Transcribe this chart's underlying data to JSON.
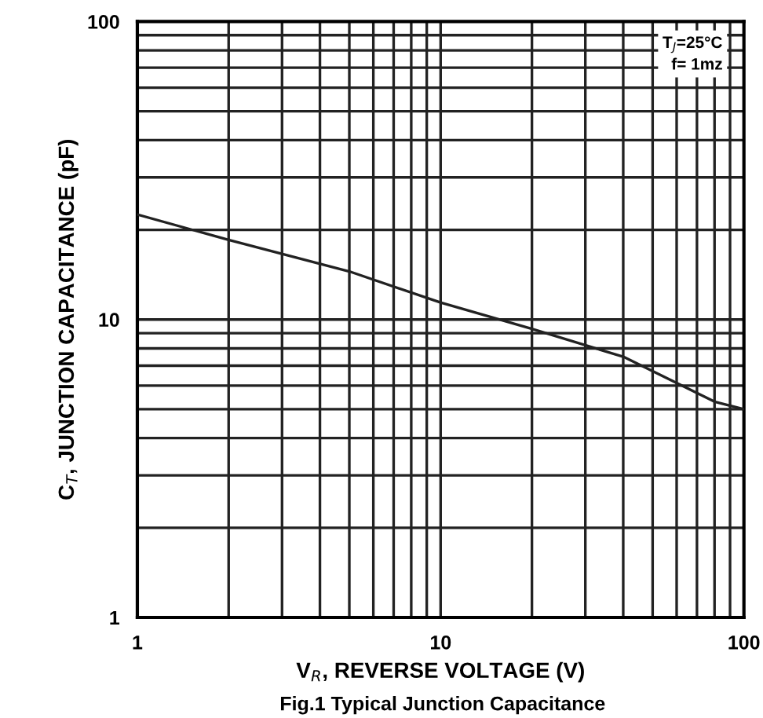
{
  "chart_data": {
    "type": "line",
    "xlabel": "V$_{R}$, REVERSE VOLTAGE (V)",
    "ylabel": "C$_{T}$, JUNCTION CAPACITANCE (pF)",
    "x": [
      1,
      2,
      5,
      10,
      20,
      40,
      80,
      100
    ],
    "series": [
      {
        "color": "#222222",
        "values": [
          22.5,
          18.5,
          14.5,
          11.4,
          9.3,
          7.5,
          5.3,
          5.0
        ]
      }
    ],
    "log": "xy",
    "xlim": [
      1,
      100
    ],
    "ylim": [
      1,
      100
    ],
    "xticks": [
      1,
      10,
      100
    ],
    "yticks": [
      1,
      10,
      100
    ],
    "grid": true,
    "annotations": [
      "T$_{J}$=25°C\nf= 1mz",
      "Fig.1 Typical Junction Capacitance"
    ]
  }
}
